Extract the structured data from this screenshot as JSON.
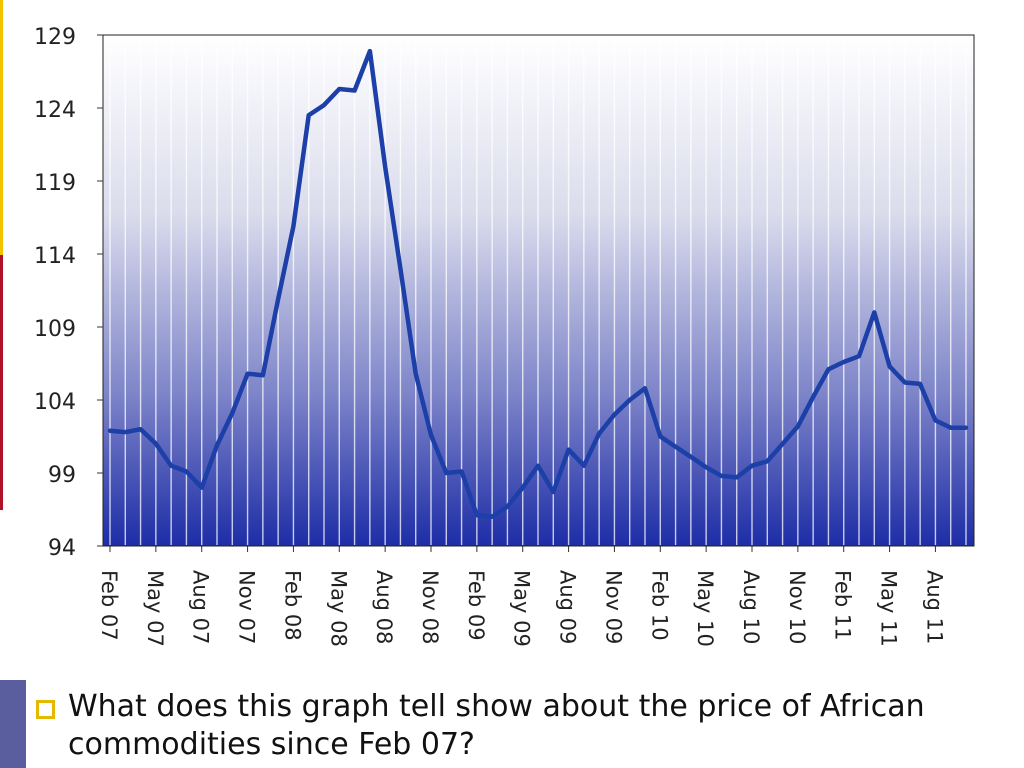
{
  "chart_data": {
    "type": "line",
    "title": "",
    "xlabel": "",
    "ylabel": "",
    "ylim": [
      94,
      129
    ],
    "yticks": [
      94,
      99,
      104,
      109,
      114,
      119,
      124,
      129
    ],
    "x_tick_labels": [
      "Feb 07",
      "May 07",
      "Aug 07",
      "Nov 07",
      "Feb 08",
      "May 08",
      "Aug 08",
      "Nov 08",
      "Feb 09",
      "May 09",
      "Aug 09",
      "Nov 09",
      "Feb 10",
      "May 10",
      "Aug 10",
      "Nov 10",
      "Feb 11",
      "May 11",
      "Aug 11"
    ],
    "grid": "vertical",
    "series": [
      {
        "color": "#1c3fa8",
        "x": [
          0,
          1,
          2,
          3,
          4,
          5,
          6,
          7,
          8,
          9,
          10,
          11,
          12,
          13,
          14,
          15,
          16,
          17,
          18,
          19,
          20,
          21,
          22,
          23,
          24,
          25,
          26,
          27,
          28,
          29,
          30,
          31,
          32,
          33,
          34,
          35,
          36,
          37,
          38,
          39,
          40,
          41,
          42,
          43,
          44,
          45,
          46,
          47,
          48,
          49,
          50,
          51,
          52,
          53,
          54,
          55,
          56
        ],
        "values": [
          101.9,
          101.8,
          102.0,
          101.0,
          99.5,
          99.1,
          98.0,
          100.9,
          103.1,
          105.8,
          105.7,
          110.9,
          115.9,
          123.5,
          124.2,
          125.3,
          125.2,
          127.9,
          120.0,
          113.0,
          105.8,
          101.6,
          99.0,
          99.1,
          96.1,
          96.0,
          96.7,
          98.0,
          99.5,
          97.7,
          100.6,
          99.5,
          101.7,
          103.0,
          104.0,
          104.8,
          101.5,
          100.8,
          100.1,
          99.4,
          98.8,
          98.7,
          99.5,
          99.8,
          101.0,
          102.2,
          104.2,
          106.1,
          106.6,
          107.0,
          110.0,
          106.3,
          105.2,
          105.1,
          102.6,
          102.1,
          102.1
        ]
      }
    ]
  },
  "question": {
    "text": "What does this graph tell show about the price of African commodities since Feb 07?"
  }
}
